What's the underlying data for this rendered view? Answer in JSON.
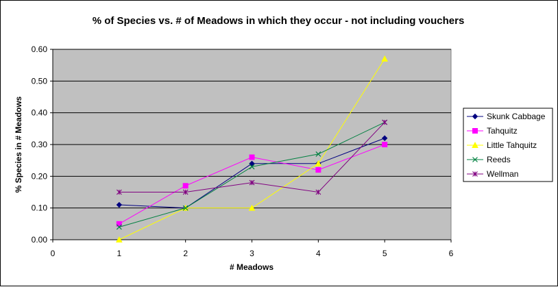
{
  "chart_data": {
    "type": "line",
    "title": "% of Species vs. # of Meadows in which they occur - not including vouchers",
    "xlabel": "# Meadows",
    "ylabel": "% Species in # Meadows",
    "xlim": [
      0,
      6
    ],
    "ylim": [
      0,
      0.6
    ],
    "x_ticks": [
      "0",
      "1",
      "2",
      "3",
      "4",
      "5",
      "6"
    ],
    "y_ticks": [
      "0.00",
      "0.10",
      "0.20",
      "0.30",
      "0.40",
      "0.50",
      "0.60"
    ],
    "grid": "horizontal",
    "plot_background": "#c0c0c0",
    "legend_position": "right",
    "series": [
      {
        "name": "Skunk Cabbage",
        "color": "#000080",
        "marker": "diamond",
        "x": [
          1,
          2,
          3,
          4,
          5
        ],
        "values": [
          0.11,
          0.1,
          0.24,
          0.24,
          0.32
        ]
      },
      {
        "name": "Tahquitz",
        "color": "#ff00ff",
        "marker": "square",
        "x": [
          1,
          2,
          3,
          4,
          5
        ],
        "values": [
          0.05,
          0.17,
          0.26,
          0.22,
          0.3
        ]
      },
      {
        "name": "Little Tahquitz",
        "color": "#ffff00",
        "marker": "triangle",
        "x": [
          1,
          2,
          3,
          4,
          5
        ],
        "values": [
          0.0,
          0.1,
          0.1,
          0.24,
          0.57
        ]
      },
      {
        "name": "Reeds",
        "color": "#008040",
        "marker": "x",
        "x": [
          1,
          2,
          3,
          4,
          5
        ],
        "values": [
          0.04,
          0.1,
          0.23,
          0.27,
          0.37
        ]
      },
      {
        "name": "Wellman",
        "color": "#800080",
        "marker": "star",
        "x": [
          1,
          2,
          3,
          4,
          5
        ],
        "values": [
          0.15,
          0.15,
          0.18,
          0.15,
          0.37
        ]
      }
    ]
  }
}
